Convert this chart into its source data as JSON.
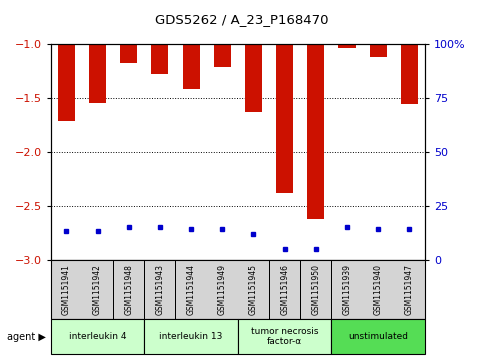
{
  "title": "GDS5262 / A_23_P168470",
  "samples": [
    "GSM1151941",
    "GSM1151942",
    "GSM1151948",
    "GSM1151943",
    "GSM1151944",
    "GSM1151949",
    "GSM1151945",
    "GSM1151946",
    "GSM1151950",
    "GSM1151939",
    "GSM1151940",
    "GSM1151947"
  ],
  "log2_values": [
    -1.72,
    -1.55,
    -1.18,
    -1.28,
    -1.42,
    -1.22,
    -1.63,
    -2.38,
    -2.62,
    -1.04,
    -1.12,
    -1.56
  ],
  "percentile_values": [
    13,
    13,
    15,
    15,
    14,
    14,
    12,
    5,
    5,
    15,
    14,
    14
  ],
  "ylim": [
    -3.0,
    -1.0
  ],
  "right_ylim": [
    0,
    100
  ],
  "yticks_left": [
    -3.0,
    -2.5,
    -2.0,
    -1.5,
    -1.0
  ],
  "yticks_right": [
    0,
    25,
    50,
    75,
    100
  ],
  "groups": [
    {
      "label": "interleukin 4",
      "indices": [
        0,
        1,
        2
      ],
      "color": "#ccffcc"
    },
    {
      "label": "interleukin 13",
      "indices": [
        3,
        4,
        5
      ],
      "color": "#ccffcc"
    },
    {
      "label": "tumor necrosis\nfactor-α",
      "indices": [
        6,
        7,
        8
      ],
      "color": "#ccffcc"
    },
    {
      "label": "unstimulated",
      "indices": [
        9,
        10,
        11
      ],
      "color": "#55dd55"
    }
  ],
  "bar_color": "#cc1100",
  "dot_color": "#0000cc",
  "background_color": "#ffffff",
  "plot_bg_color": "#ffffff",
  "tick_color_left": "#cc1100",
  "tick_color_right": "#0000cc",
  "bar_width": 0.55,
  "agent_label": "agent"
}
